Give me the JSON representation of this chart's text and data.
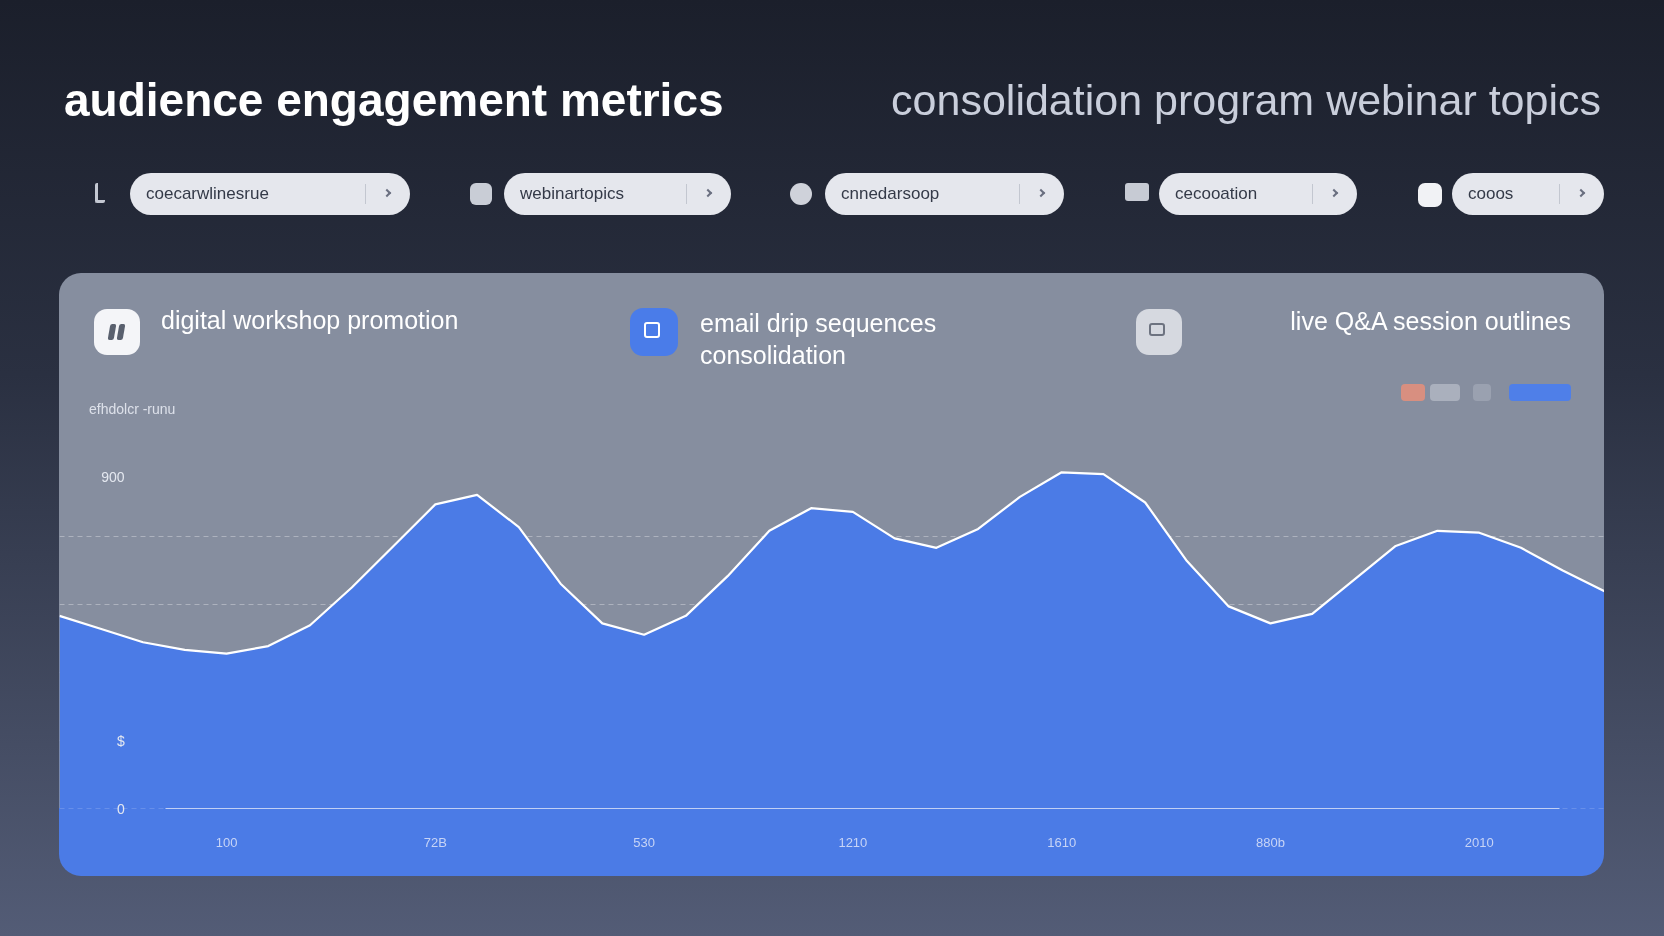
{
  "chart_data": {
    "type": "area",
    "title": "audience engagement metrics",
    "subtitle": "consolidation program webinar topics",
    "ylabel": "efhdolcr -runu",
    "annotations": [
      "coecarwlinesrue",
      "webinartopics",
      "cnnedarsoop",
      "cecooation",
      "cooos",
      "digital workshop promotion",
      "email drip sequences consolidation",
      "live Q&A session outlines"
    ],
    "categories": [
      null,
      null,
      null,
      null,
      "100",
      null,
      null,
      null,
      null,
      "72B",
      null,
      null,
      null,
      null,
      "530",
      null,
      null,
      null,
      null,
      "1210",
      null,
      null,
      null,
      null,
      "1610",
      null,
      null,
      null,
      null,
      "880b",
      null,
      null,
      null,
      null,
      "2010",
      null,
      null,
      null
    ],
    "series": [
      {
        "color": "#4b7be6",
        "values": [
          510,
          475,
          440,
          420,
          410,
          430,
          485,
          585,
          695,
          805,
          830,
          745,
          595,
          490,
          460,
          510,
          615,
          735,
          795,
          785,
          715,
          690,
          740,
          825,
          890,
          885,
          810,
          655,
          535,
          490,
          515,
          605,
          695,
          735,
          730,
          690,
          630,
          575
        ]
      }
    ],
    "ylim": [
      -180,
      900
    ],
    "yticks": [
      0,
      {
        "value": 180,
        "label": "$"
      },
      {
        "value": 360,
        "label": null
      },
      {
        "value": 540,
        "label": null
      },
      {
        "value": 720,
        "label": null
      },
      900
    ],
    "grid": "y"
  }
}
